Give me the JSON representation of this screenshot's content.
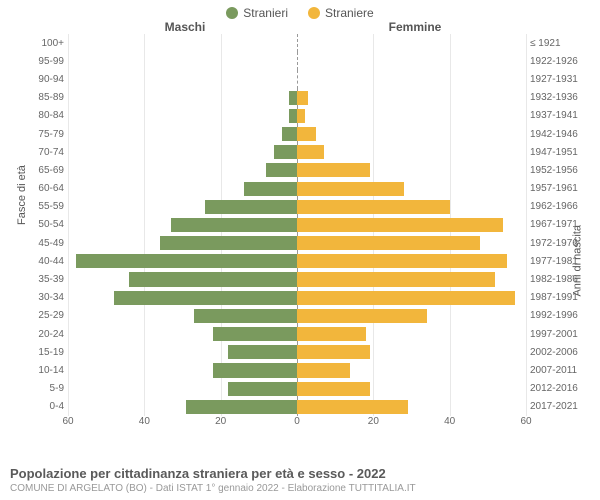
{
  "chart": {
    "type": "population-pyramid",
    "legend": [
      {
        "label": "Stranieri",
        "color": "#7a9a5e"
      },
      {
        "label": "Straniere",
        "color": "#f2b63c"
      }
    ],
    "left_header": "Maschi",
    "right_header": "Femmine",
    "y_axis_left_title": "Fasce di età",
    "y_axis_right_title": "Anni di nascita",
    "x_max": 60,
    "x_ticks": [
      60,
      40,
      20,
      0,
      20,
      40,
      60
    ],
    "male_color": "#7a9a5e",
    "female_color": "#f2b63c",
    "background_color": "#ffffff",
    "grid_color": "#e8e8e8",
    "center_line_color": "#999999",
    "bar_height_ratio": 0.78,
    "label_fontsize": 10,
    "header_fontsize": 12,
    "rows": [
      {
        "age": "100+",
        "year": "≤ 1921",
        "m": 0,
        "f": 0
      },
      {
        "age": "95-99",
        "year": "1922-1926",
        "m": 0,
        "f": 0
      },
      {
        "age": "90-94",
        "year": "1927-1931",
        "m": 0,
        "f": 0
      },
      {
        "age": "85-89",
        "year": "1932-1936",
        "m": 2,
        "f": 3
      },
      {
        "age": "80-84",
        "year": "1937-1941",
        "m": 2,
        "f": 2
      },
      {
        "age": "75-79",
        "year": "1942-1946",
        "m": 4,
        "f": 5
      },
      {
        "age": "70-74",
        "year": "1947-1951",
        "m": 6,
        "f": 7
      },
      {
        "age": "65-69",
        "year": "1952-1956",
        "m": 8,
        "f": 19
      },
      {
        "age": "60-64",
        "year": "1957-1961",
        "m": 14,
        "f": 28
      },
      {
        "age": "55-59",
        "year": "1962-1966",
        "m": 24,
        "f": 40
      },
      {
        "age": "50-54",
        "year": "1967-1971",
        "m": 33,
        "f": 54
      },
      {
        "age": "45-49",
        "year": "1972-1976",
        "m": 36,
        "f": 48
      },
      {
        "age": "40-44",
        "year": "1977-1981",
        "m": 58,
        "f": 55
      },
      {
        "age": "35-39",
        "year": "1982-1986",
        "m": 44,
        "f": 52
      },
      {
        "age": "30-34",
        "year": "1987-1991",
        "m": 48,
        "f": 57
      },
      {
        "age": "25-29",
        "year": "1992-1996",
        "m": 27,
        "f": 34
      },
      {
        "age": "20-24",
        "year": "1997-2001",
        "m": 22,
        "f": 18
      },
      {
        "age": "15-19",
        "year": "2002-2006",
        "m": 18,
        "f": 19
      },
      {
        "age": "10-14",
        "year": "2007-2011",
        "m": 22,
        "f": 14
      },
      {
        "age": "5-9",
        "year": "2012-2016",
        "m": 18,
        "f": 19
      },
      {
        "age": "0-4",
        "year": "2017-2021",
        "m": 29,
        "f": 29
      }
    ]
  },
  "footer": {
    "title": "Popolazione per cittadinanza straniera per età e sesso - 2022",
    "subtitle": "COMUNE DI ARGELATO (BO) - Dati ISTAT 1° gennaio 2022 - Elaborazione TUTTITALIA.IT"
  }
}
